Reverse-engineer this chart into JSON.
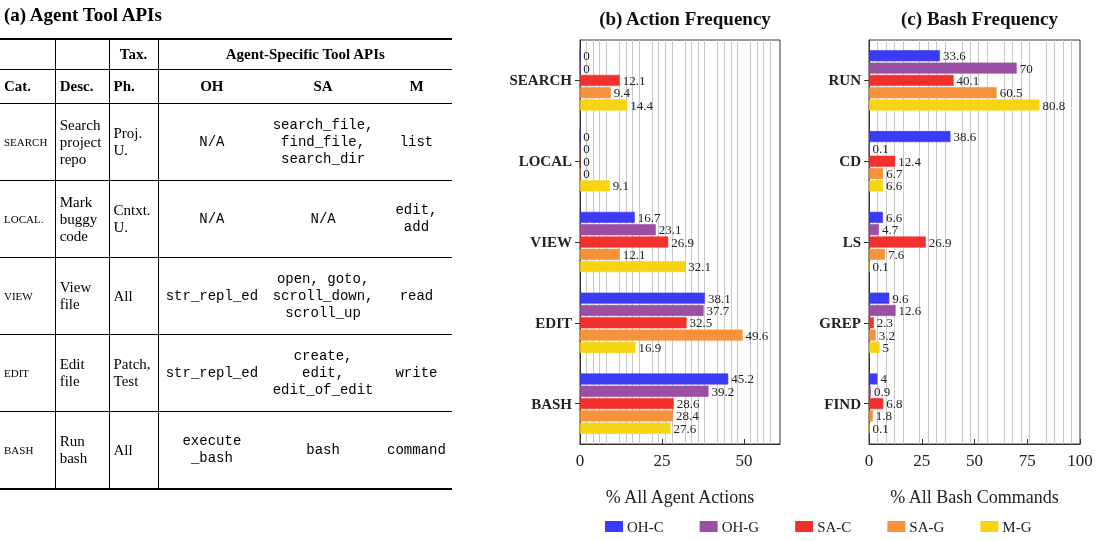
{
  "chart_data": [
    {
      "type": "other",
      "title": "(a) Agent Tool APIs",
      "annotations": [
        "Tax.",
        "Agent-Specific Tool APIs",
        "Cat.",
        "Desc.",
        "Ph.",
        "OH",
        "SA",
        "M",
        "SEARCH",
        "Search\nproject\nrepo",
        "Proj.\nU.",
        "N/A",
        "search_file,\nfind_file,\nsearch_dir",
        "list",
        "LOCAL.",
        "Mark\nbuggy\ncode",
        "Cntxt.\nU.",
        "N/A",
        "N/A",
        "edit,\nadd",
        "VIEW",
        "View\nfile",
        "All",
        "str_repl_ed",
        "open, goto,\nscroll_down,\nscroll_up",
        "read",
        "EDIT",
        "Edit\nfile",
        "Patch,\nTest",
        "str_repl_ed",
        "create,\nedit,\nedit_of_edit",
        "write",
        "BASH",
        "Run\nbash",
        "All",
        "execute\n_bash",
        "bash",
        "command"
      ]
    },
    {
      "type": "bar",
      "orientation": "horizontal",
      "title": "(b) Action Frequency",
      "xlabel": "% All Agent Actions",
      "categories": [
        "SEARCH",
        "LOCAL",
        "VIEW",
        "EDIT",
        "BASH"
      ],
      "xlim": [
        0,
        61
      ],
      "xticks": [
        0,
        25,
        50
      ],
      "grid": "x",
      "legend": "bottom",
      "data_labels": true,
      "series": [
        {
          "name": "OH-C",
          "color": "#3b3bf5",
          "values": [
            0,
            0,
            16.7,
            38.1,
            45.2
          ]
        },
        {
          "name": "OH-G",
          "color": "#9b4fa3",
          "values": [
            0,
            0,
            23.1,
            37.7,
            39.2
          ]
        },
        {
          "name": "SA-C",
          "color": "#f2302e",
          "values": [
            12.1,
            0,
            26.9,
            32.5,
            28.6
          ]
        },
        {
          "name": "SA-G",
          "color": "#f6923a",
          "values": [
            9.4,
            0,
            12.1,
            49.6,
            28.4
          ]
        },
        {
          "name": "M-G",
          "color": "#f7d411",
          "values": [
            14.4,
            9.1,
            32.1,
            16.9,
            27.6
          ]
        }
      ]
    },
    {
      "type": "bar",
      "orientation": "horizontal",
      "title": "(c) Bash Frequency",
      "xlabel": "% All Bash Commands",
      "categories": [
        "RUN",
        "CD",
        "LS",
        "GREP",
        "FIND"
      ],
      "xlim": [
        0,
        100
      ],
      "xticks": [
        0,
        25,
        50,
        75,
        100
      ],
      "grid": "x",
      "data_labels": true,
      "series": [
        {
          "color": "#3b3bf5",
          "values": [
            33.6,
            38.6,
            6.6,
            9.6,
            4
          ]
        },
        {
          "color": "#9b4fa3",
          "values": [
            70,
            0.1,
            4.7,
            12.6,
            0.9
          ]
        },
        {
          "color": "#f2302e",
          "values": [
            40.1,
            12.4,
            26.9,
            2.3,
            6.8
          ]
        },
        {
          "color": "#f6923a",
          "values": [
            60.5,
            6.7,
            7.6,
            3.2,
            1.8
          ]
        },
        {
          "color": "#f7d411",
          "values": [
            80.8,
            6.6,
            0.1,
            5,
            0.1
          ]
        }
      ]
    }
  ]
}
